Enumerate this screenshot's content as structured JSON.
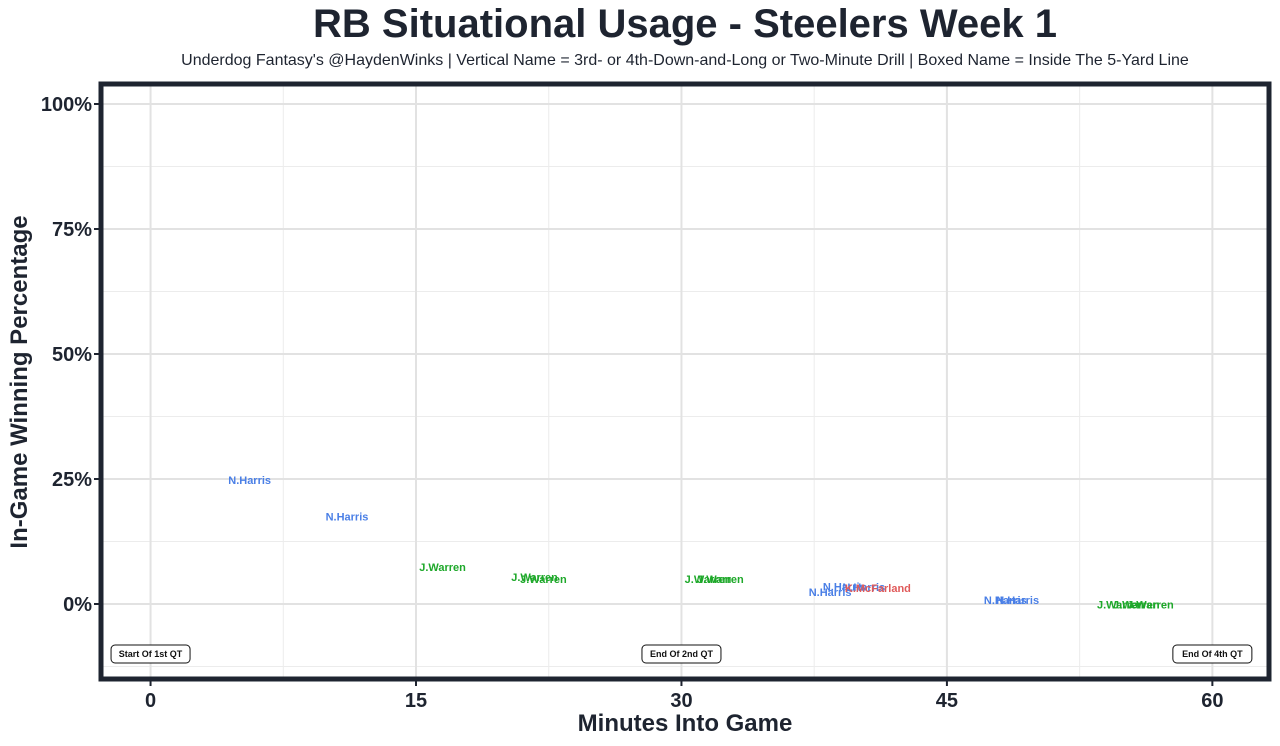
{
  "chart_data": {
    "type": "scatter",
    "title": "RB Situational Usage - Steelers Week 1",
    "subtitle": "Underdog Fantasy's @HaydenWinks | Vertical Name = 3rd- or 4th-Down-and-Long or Two-Minute Drill | Boxed Name = Inside The 5-Yard Line",
    "xlabel": "Minutes Into Game",
    "ylabel": "In-Game Winning Percentage",
    "xlim": [
      -2.8,
      63.2
    ],
    "ylim": [
      -15,
      104
    ],
    "x_ticks": [
      0,
      15,
      30,
      45,
      60
    ],
    "x_tick_labels": [
      "0",
      "15",
      "30",
      "45",
      "60"
    ],
    "y_ticks": [
      0,
      25,
      50,
      75,
      100
    ],
    "y_tick_labels": [
      "0%",
      "25%",
      "50%",
      "75%",
      "100%"
    ],
    "grid": true,
    "player_colors": {
      "N.Harris": "#4a7fe6",
      "J.Warren": "#1ea82a",
      "K.McFarland": "#e05a5a"
    },
    "series": [
      {
        "name": "N.Harris",
        "points": [
          {
            "x": 5.6,
            "y": 24.8,
            "label": "N.Harris"
          },
          {
            "x": 11.1,
            "y": 17.5,
            "label": "N.Harris"
          },
          {
            "x": 39.2,
            "y": 3.5,
            "label": "N.Harris"
          },
          {
            "x": 38.4,
            "y": 2.4,
            "label": "N.Harris"
          },
          {
            "x": 40.3,
            "y": 3.4,
            "label": "N.Harris"
          },
          {
            "x": 48.3,
            "y": 0.8,
            "label": "N.Harris"
          },
          {
            "x": 49.0,
            "y": 0.8,
            "label": "N.Harris"
          }
        ]
      },
      {
        "name": "J.Warren",
        "points": [
          {
            "x": 16.5,
            "y": 7.4,
            "label": "J.Warren"
          },
          {
            "x": 21.7,
            "y": 5.4,
            "label": "J.Warren"
          },
          {
            "x": 22.2,
            "y": 5.0,
            "label": "J.Warren"
          },
          {
            "x": 31.5,
            "y": 5.0,
            "label": "J.Warren"
          },
          {
            "x": 32.2,
            "y": 5.0,
            "label": "J.Warren"
          },
          {
            "x": 54.8,
            "y": -0.1,
            "label": "J.Warren"
          },
          {
            "x": 55.7,
            "y": -0.1,
            "label": "J.Warren"
          },
          {
            "x": 56.5,
            "y": -0.1,
            "label": "J.Warren"
          }
        ]
      },
      {
        "name": "K.McFarland",
        "points": [
          {
            "x": 41.1,
            "y": 3.2,
            "label": "K.McFarland"
          }
        ]
      }
    ],
    "annotations": [
      {
        "x": 0,
        "y": -10,
        "text": "Start Of 1st QT"
      },
      {
        "x": 30,
        "y": -10,
        "text": "End Of 2nd QT"
      },
      {
        "x": 60,
        "y": -10,
        "text": "End Of 4th QT"
      }
    ]
  }
}
